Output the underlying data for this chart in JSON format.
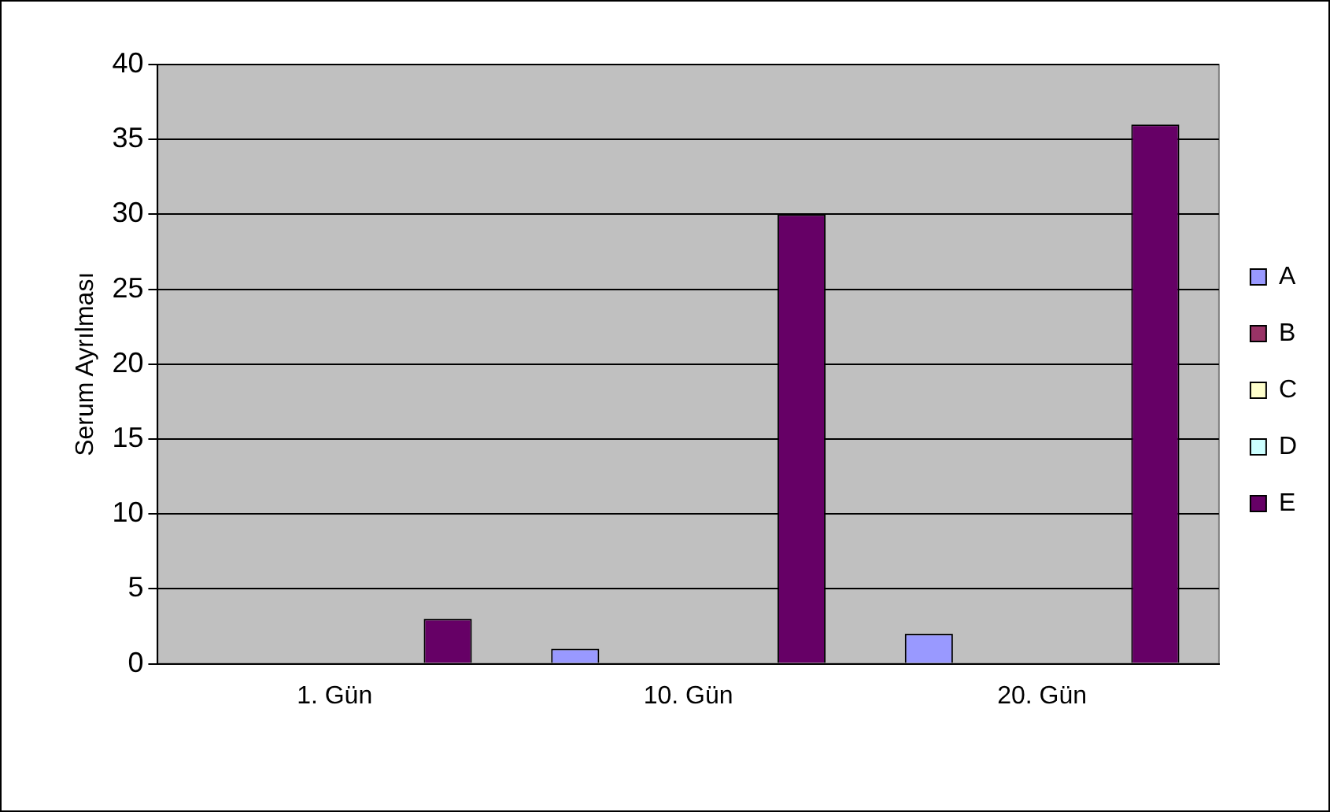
{
  "chart_data": {
    "type": "bar",
    "ylabel": "Serum Ayrılması",
    "categories": [
      "1. Gün",
      "10. Gün",
      "20. Gün"
    ],
    "series": [
      {
        "name": "A",
        "color": "#9999ff",
        "values": [
          0,
          1,
          2
        ]
      },
      {
        "name": "B",
        "color": "#993366",
        "values": [
          0,
          0,
          0
        ]
      },
      {
        "name": "C",
        "color": "#ffffcc",
        "values": [
          0,
          0,
          0
        ]
      },
      {
        "name": "D",
        "color": "#ccffff",
        "values": [
          0,
          0,
          0
        ]
      },
      {
        "name": "E",
        "color": "#660066",
        "values": [
          3,
          30,
          36
        ]
      }
    ],
    "ylim": [
      0,
      40
    ],
    "yticks": [
      0,
      5,
      10,
      15,
      20,
      25,
      30,
      35,
      40
    ],
    "grid": "y",
    "legend": "right"
  }
}
